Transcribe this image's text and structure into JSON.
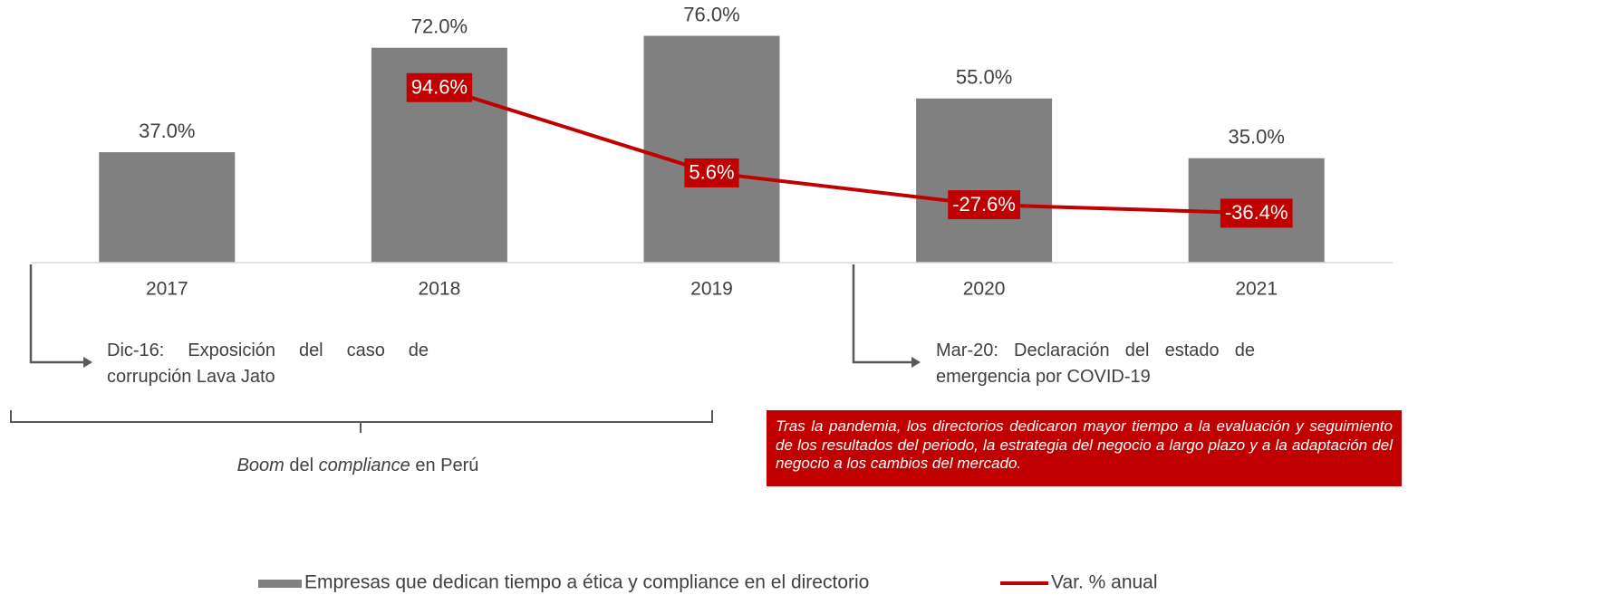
{
  "chart_data": {
    "type": "bar",
    "categories": [
      "2017",
      "2018",
      "2019",
      "2020",
      "2021"
    ],
    "series": [
      {
        "name": "Empresas que dedican tiempo a ética y compliance en el directorio",
        "type": "bar",
        "color": "#808080",
        "values": [
          37,
          72,
          76,
          55,
          35
        ],
        "value_labels": [
          "37.0%",
          "72.0%",
          "76.0%",
          "55.0%",
          "35.0%"
        ]
      },
      {
        "name": "Var. % anual",
        "type": "line",
        "axis": "y2",
        "color": "#c00000",
        "values": [
          null,
          94.6,
          5.6,
          -27.6,
          -36.4
        ],
        "value_labels": [
          null,
          "94.6%",
          "5.6%",
          "-27.6%",
          "-36.4%"
        ]
      }
    ],
    "ylim": [
      0,
      88
    ],
    "y2lim": [
      -88,
      186
    ],
    "annotations": {
      "left": "Dic-16: Exposición del caso de corrupción Lava Jato",
      "right": "Mar-20: Declaración del estado de emergencia por COVID-19",
      "boom": [
        "Boom",
        " del ",
        "compliance",
        " en Perú"
      ]
    },
    "note": "Tras la pandemia, los directorios dedicaron mayor tiempo a la evaluación y seguimiento de los resultados del periodo, la estrategia del negocio a largo plazo y a la adaptación del negocio a los cambios del mercado."
  }
}
